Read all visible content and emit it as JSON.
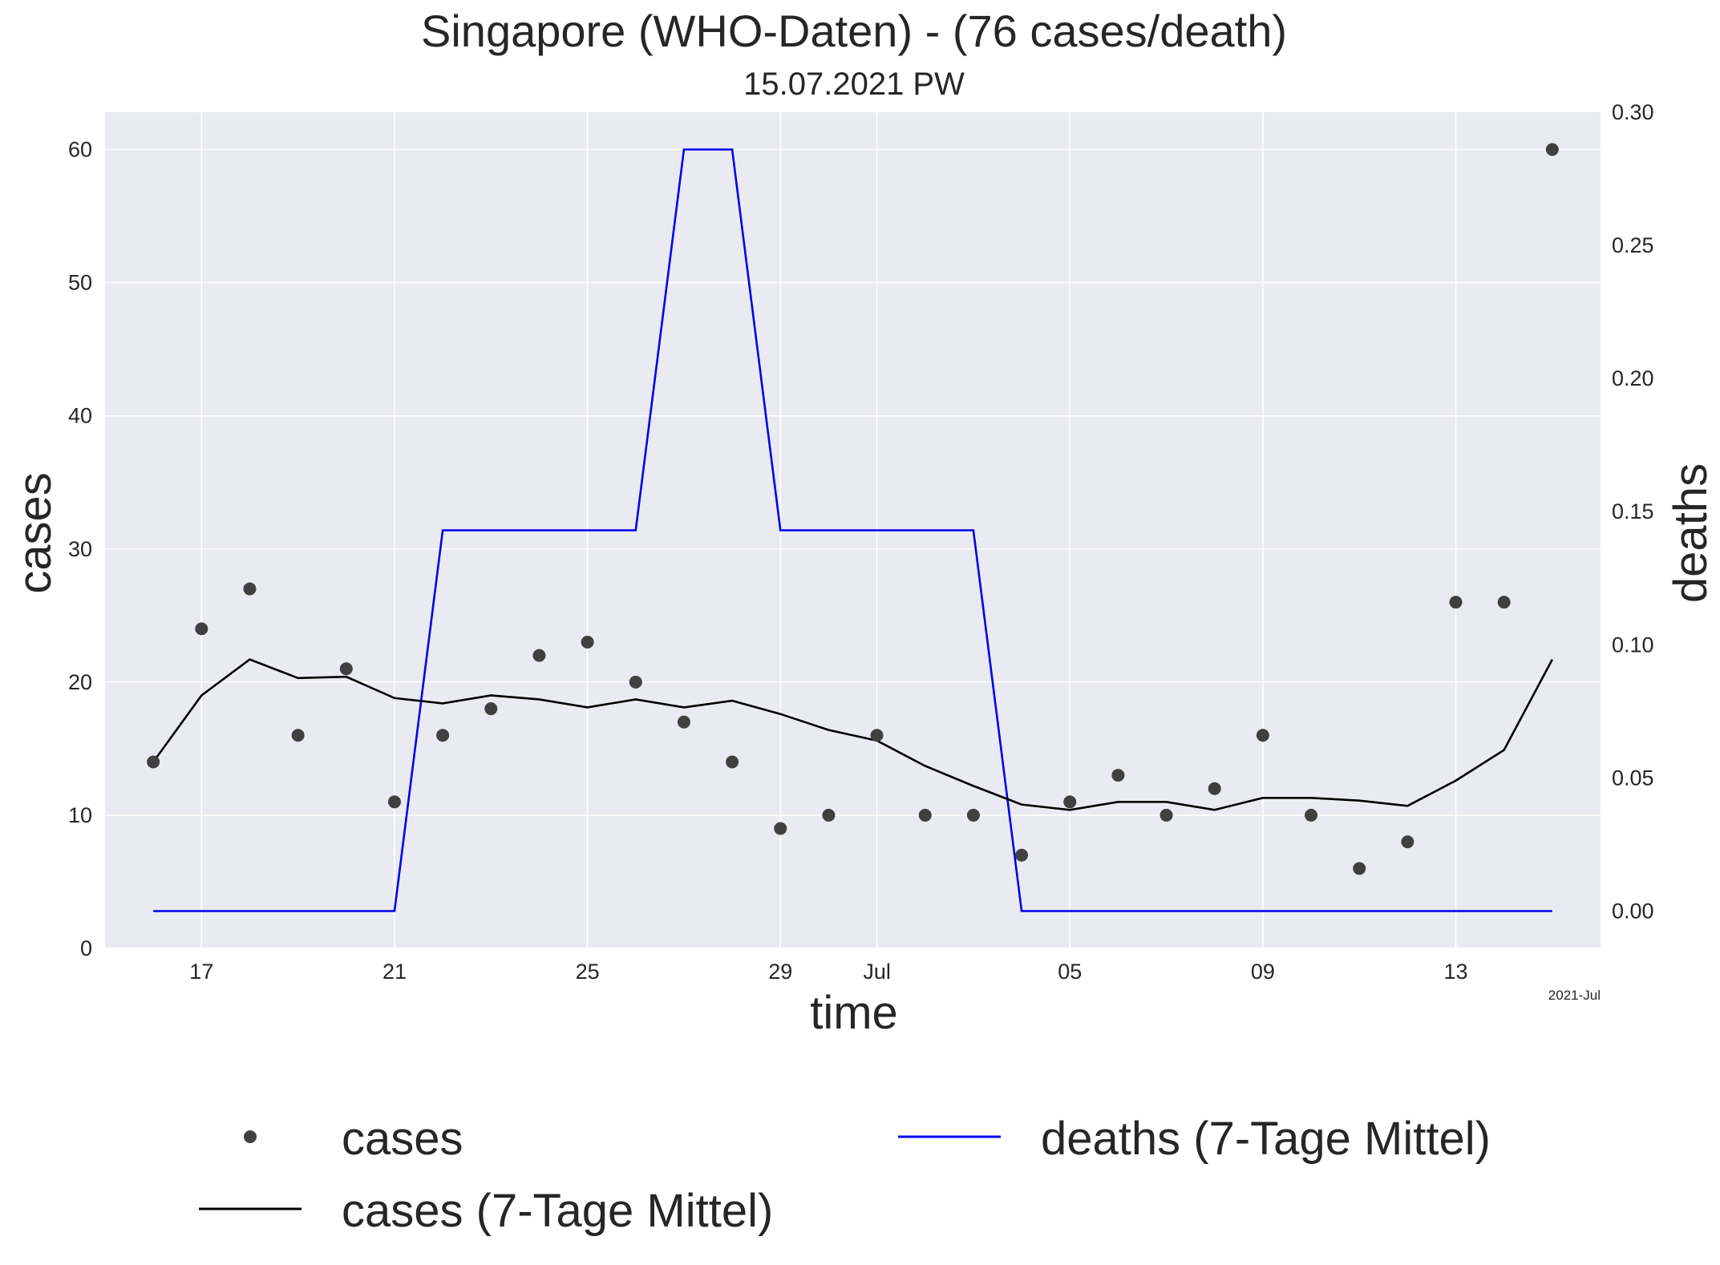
{
  "chart_data": {
    "type": "line",
    "title": "Singapore (WHO-Daten) - (76 cases/death)",
    "subtitle": "15.07.2021 PW",
    "xlabel": "time",
    "ylabel": "cases",
    "y2label": "deaths",
    "x_offset_label": "2021-Jul",
    "x": [
      "2021-06-16",
      "2021-06-17",
      "2021-06-18",
      "2021-06-19",
      "2021-06-20",
      "2021-06-21",
      "2021-06-22",
      "2021-06-23",
      "2021-06-24",
      "2021-06-25",
      "2021-06-26",
      "2021-06-27",
      "2021-06-28",
      "2021-06-29",
      "2021-06-30",
      "2021-07-01",
      "2021-07-02",
      "2021-07-03",
      "2021-07-04",
      "2021-07-05",
      "2021-07-06",
      "2021-07-07",
      "2021-07-08",
      "2021-07-09",
      "2021-07-10",
      "2021-07-11",
      "2021-07-12",
      "2021-07-13",
      "2021-07-14",
      "2021-07-15"
    ],
    "xlim": [
      "2021-06-15",
      "2021-07-16"
    ],
    "x_ticks": [
      {
        "date": "2021-06-17",
        "label": "17"
      },
      {
        "date": "2021-06-21",
        "label": "21"
      },
      {
        "date": "2021-06-25",
        "label": "25"
      },
      {
        "date": "2021-06-29",
        "label": "29"
      },
      {
        "date": "2021-07-01",
        "label": "Jul"
      },
      {
        "date": "2021-07-05",
        "label": "05"
      },
      {
        "date": "2021-07-09",
        "label": "09"
      },
      {
        "date": "2021-07-13",
        "label": "13"
      }
    ],
    "ylim": [
      0,
      62.8
    ],
    "y_ticks": [
      0,
      10,
      20,
      30,
      40,
      50,
      60
    ],
    "y2lim": [
      -0.014,
      0.3
    ],
    "y2_ticks": [
      "0.00",
      "0.05",
      "0.10",
      "0.15",
      "0.20",
      "0.25",
      "0.30"
    ],
    "grid": true,
    "legend_position": "bottom",
    "colors": {
      "background": "#eaeaf2",
      "grid": "#ffffff",
      "cases_points": "#404040",
      "cases_avg": "#000000",
      "deaths_avg": "#0000ee",
      "deaths_label": "#0000ee"
    },
    "series": [
      {
        "name": "cases",
        "axis": "left",
        "style": "points",
        "values": [
          14,
          24,
          27,
          16,
          21,
          11,
          16,
          18,
          22,
          23,
          20,
          17,
          14,
          9,
          10,
          16,
          10,
          10,
          7,
          11,
          13,
          10,
          12,
          16,
          10,
          6,
          8,
          26,
          26,
          60
        ]
      },
      {
        "name": "cases (7-Tage Mittel)",
        "axis": "left",
        "style": "line",
        "values": [
          14,
          19,
          21.7,
          20.3,
          20.4,
          18.8,
          18.4,
          19,
          18.7,
          18.1,
          18.7,
          18.1,
          18.6,
          17.6,
          16.4,
          15.6,
          13.7,
          12.2,
          10.8,
          10.4,
          11,
          11,
          10.4,
          11.3,
          11.3,
          11.1,
          10.7,
          12.6,
          14.9,
          21.7
        ]
      },
      {
        "name": "deaths (7-Tage Mittel)",
        "axis": "right",
        "style": "line",
        "values": [
          0,
          0,
          0,
          0,
          0,
          0,
          0.143,
          0.143,
          0.143,
          0.143,
          0.143,
          0.286,
          0.286,
          0.143,
          0.143,
          0.143,
          0.143,
          0.143,
          0,
          0,
          0,
          0,
          0,
          0,
          0,
          0,
          0,
          0,
          0,
          0
        ]
      }
    ]
  }
}
